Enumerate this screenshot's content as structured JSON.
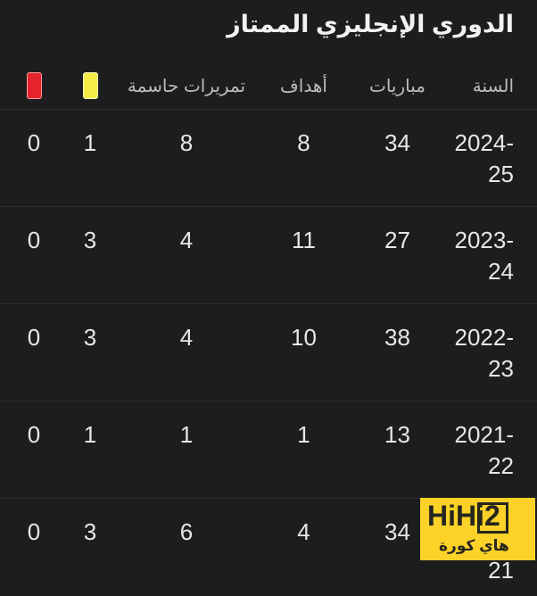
{
  "title": "الدوري الإنجليزي الممتاز",
  "table": {
    "headers": {
      "season": "السنة",
      "matches": "مباريات",
      "goals": "أهداف",
      "assists": "تمريرات حاسمة"
    },
    "icons": {
      "yellow_card": "yellow-card-icon",
      "red_card": "red-card-icon"
    },
    "rows": [
      {
        "season": "2024-25",
        "matches": "34",
        "goals": "8",
        "assists": "8",
        "yellow": "1",
        "red": "0"
      },
      {
        "season": "2023-24",
        "matches": "27",
        "goals": "11",
        "assists": "4",
        "yellow": "3",
        "red": "0"
      },
      {
        "season": "2022-23",
        "matches": "38",
        "goals": "10",
        "assists": "4",
        "yellow": "3",
        "red": "0"
      },
      {
        "season": "2021-22",
        "matches": "13",
        "goals": "1",
        "assists": "1",
        "yellow": "1",
        "red": "0"
      },
      {
        "season": "2020-21",
        "matches": "34",
        "goals": "4",
        "assists": "6",
        "yellow": "3",
        "red": "0"
      }
    ]
  },
  "watermark": {
    "brand": "HiHi2",
    "tagline": "هاي كورة"
  },
  "colors": {
    "background": "#1d1d1f",
    "text_primary": "#e7e7e7",
    "text_secondary": "#bdbdbd",
    "separator": "#2f2f33",
    "yellow_card": "#f5ec46",
    "red_card": "#e5232d",
    "watermark_yellow": "#fcd228",
    "watermark_text": "#26261f"
  }
}
